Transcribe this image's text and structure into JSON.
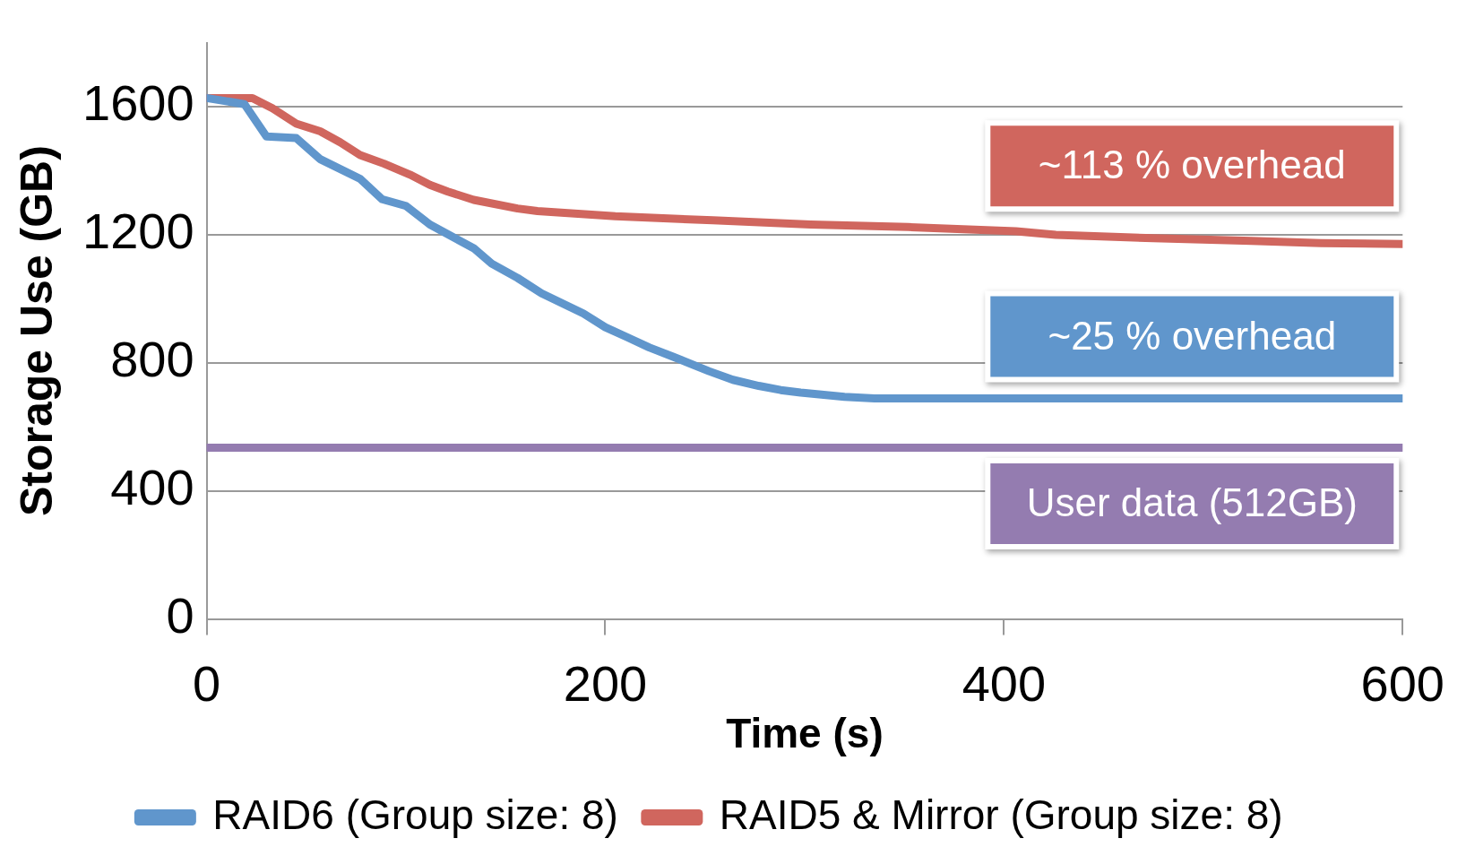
{
  "chart_data": {
    "type": "line",
    "xlabel": "Time (s)",
    "ylabel": "Storage Use (GB)",
    "xlim": [
      0,
      600
    ],
    "xticks": [
      0,
      200,
      400,
      600
    ],
    "ylim": [
      0,
      1800
    ],
    "yticks": [
      0,
      400,
      800,
      1200,
      1600
    ],
    "grid": "y",
    "legend": "bottom",
    "marker": "none",
    "line_style": "solid",
    "series": [
      {
        "name": "RAID6 (Group size: 8)",
        "color": "#6096cc",
        "x": [
          0,
          19,
          30,
          45,
          57,
          77,
          88,
          100,
          112,
          134,
          143,
          156,
          168,
          189,
          200,
          211,
          222,
          234,
          252,
          264,
          277,
          288,
          298,
          320,
          335,
          600
        ],
        "values": [
          1627,
          1608,
          1507,
          1502,
          1436,
          1375,
          1311,
          1290,
          1232,
          1158,
          1110,
          1065,
          1017,
          954,
          911,
          880,
          848,
          819,
          774,
          747,
          728,
          715,
          707,
          694,
          689,
          689
        ]
      },
      {
        "name": "RAID5 & Mirror (Group size: 8)",
        "color": "#d0665e",
        "x": [
          0,
          23,
          33,
          45,
          57,
          67,
          77,
          89,
          102,
          112,
          121,
          134,
          156,
          166,
          205,
          254,
          303,
          352,
          406,
          426,
          475,
          524,
          559,
          600
        ],
        "values": [
          1627,
          1627,
          1595,
          1547,
          1523,
          1489,
          1449,
          1422,
          1388,
          1356,
          1335,
          1309,
          1282,
          1274,
          1258,
          1245,
          1232,
          1224,
          1211,
          1200,
          1189,
          1181,
          1174,
          1171
        ]
      },
      {
        "color": "#947cb0",
        "x": [
          0,
          600
        ],
        "values": [
          535,
          535
        ]
      }
    ],
    "annotations": [
      "~25 % overhead",
      "~113 % overhead",
      "User data (512GB)"
    ]
  }
}
